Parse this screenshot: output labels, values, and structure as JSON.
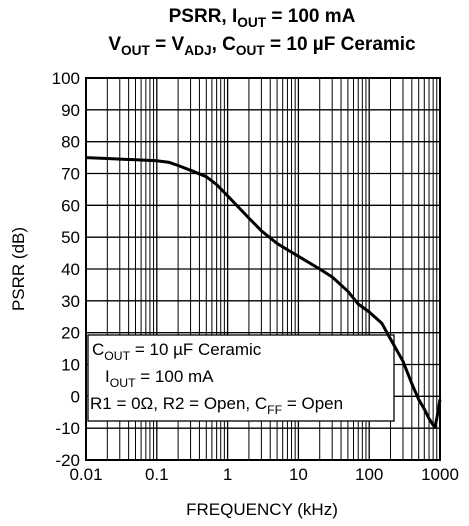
{
  "chart_data": {
    "type": "line",
    "title": [
      [
        {
          "text": "PSRR, I"
        },
        {
          "text": "OUT",
          "sub": true
        },
        {
          "text": " = 100 mA"
        }
      ],
      [
        {
          "text": "V"
        },
        {
          "text": "OUT",
          "sub": true
        },
        {
          "text": " = V"
        },
        {
          "text": "ADJ",
          "sub": true
        },
        {
          "text": ", C"
        },
        {
          "text": "OUT",
          "sub": true
        },
        {
          "text": " = 10 µF Ceramic"
        }
      ]
    ],
    "x_label": "FREQUENCY (kHz)",
    "y_label": "PSRR (dB)",
    "x_scale": "log",
    "xlim": [
      0.01,
      1000
    ],
    "xticks": [
      0.01,
      0.1,
      1,
      10,
      100,
      1000
    ],
    "ylim": [
      -20,
      100
    ],
    "yticks": [
      -20,
      -10,
      0,
      10,
      20,
      30,
      40,
      50,
      60,
      70,
      80,
      90,
      100
    ],
    "grid": true,
    "minor_grid": true,
    "annotation": [
      [
        {
          "text": "C"
        },
        {
          "text": "OUT",
          "sub": true
        },
        {
          "text": " = 10 µF Ceramic"
        }
      ],
      [
        {
          "text": "I"
        },
        {
          "text": "OUT",
          "sub": true
        },
        {
          "text": " = 100 mA"
        }
      ],
      [
        {
          "text": "R1 = 0Ω, R2 = Open, C"
        },
        {
          "text": "FF",
          "sub": true
        },
        {
          "text": " = Open"
        }
      ]
    ],
    "series": [
      {
        "color": "#000000",
        "x": [
          0.01,
          0.02,
          0.05,
          0.1,
          0.15,
          0.2,
          0.3,
          0.5,
          0.7,
          1,
          2,
          3,
          5,
          10,
          20,
          30,
          50,
          70,
          100,
          150,
          200,
          300,
          400,
          500,
          600,
          700,
          800,
          850,
          900,
          1000
        ],
        "values": [
          75,
          74.7,
          74.3,
          74,
          73.5,
          72.5,
          71,
          69,
          66.5,
          63,
          56,
          52,
          48,
          44,
          40,
          37.5,
          33,
          29,
          26.5,
          23,
          18,
          11,
          4,
          -1,
          -4,
          -7,
          -9,
          -9.5,
          -7,
          -1
        ]
      }
    ]
  }
}
